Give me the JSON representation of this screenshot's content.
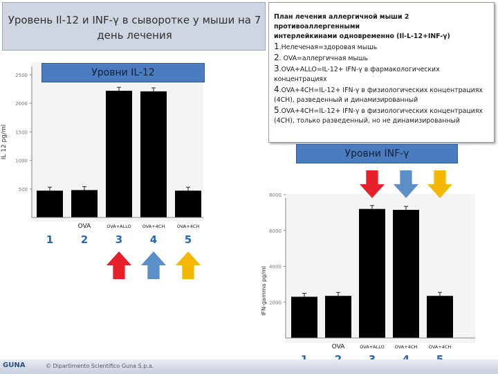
{
  "slide": {
    "title_line1": "Уровень Il-12 и INF-γ в сыворотке у мыши на 7",
    "title_line2": "день лечения",
    "footer_logo": "GUNA",
    "footer_text": "© Dipartimento Scientifico Guna S.p.a."
  },
  "info": {
    "header_line1": "План лечения аллергичной мыши 2 противоаллергенными",
    "header_line2": "интерлейкинами одновременно (Il-L-12+INF-γ)",
    "items": [
      {
        "num": "1",
        "text": ".Нелеченая=здоровая мышь"
      },
      {
        "num": "2",
        "text": ". OVA=аллергичная мышь"
      },
      {
        "num": "3",
        "text": ".OVA+ALLO=IL-12+ IFN-γ в фармакологических"
      },
      {
        "num": "",
        "text": "концентрациях"
      },
      {
        "num": "4",
        "text": ".OVA+4CH=IL-12+ IFN-γ в физиологических концентрациях"
      },
      {
        "num": "",
        "text": "(4CH), разведенный и динамизированный"
      },
      {
        "num": "5",
        "text": ".OVA+4CH=IL-12+ IFN-γ в физиологических концентрациях"
      },
      {
        "num": "",
        "text": "(4CH), только разведенный, но не динамизированный"
      }
    ]
  },
  "chart_data": [
    {
      "type": "bar",
      "title": "Уровни IL-12",
      "ylabel": "IL 12 pg/ml",
      "ylim": [
        0,
        2500
      ],
      "yticks": [
        "2500",
        "2000",
        "1500",
        "1000",
        "500"
      ],
      "categories": [
        "",
        "OVA",
        "OVA+ALLO",
        "OVA+4CH",
        "OVA+4CH"
      ],
      "numbers": [
        "1",
        "2",
        "3",
        "4",
        "5"
      ],
      "values": [
        470,
        480,
        2220,
        2210,
        470
      ],
      "bar_color": "#000000",
      "grid": false,
      "arrows": [
        {
          "under": "3",
          "color": "#e8202a"
        },
        {
          "under": "4",
          "color": "#5b8fc8"
        },
        {
          "under": "5",
          "color": "#f5b800"
        }
      ]
    },
    {
      "type": "bar",
      "title": "Уровни INF-γ",
      "ylabel": "IFN-gamma pg/ml",
      "ylim": [
        0,
        8000
      ],
      "yticks": [
        "8000",
        "6000",
        "4000",
        "2000"
      ],
      "categories": [
        "",
        "OVA",
        "OVA+ALLO",
        "OVA+4CH",
        "OVA+4CH"
      ],
      "numbers": [
        "1",
        "2",
        "3",
        "4",
        "5"
      ],
      "values": [
        2300,
        2350,
        7200,
        7150,
        2350
      ],
      "bar_color": "#000000",
      "grid": false,
      "arrows": [
        {
          "under": "3",
          "color": "#e8202a"
        },
        {
          "under": "4",
          "color": "#5b8fc8"
        },
        {
          "under": "5",
          "color": "#f5b800"
        }
      ]
    }
  ]
}
